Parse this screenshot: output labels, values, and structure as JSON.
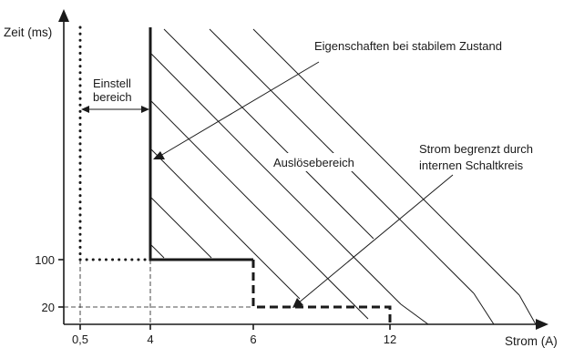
{
  "axes": {
    "y_label": "Zeit (ms)",
    "x_label": "Strom (A)",
    "x_ticks": [
      "0,5",
      "4",
      "6",
      "12"
    ],
    "y_ticks": [
      "100",
      "20"
    ]
  },
  "annotations": {
    "einstell_line1": "Einstell",
    "einstell_line2": "bereich",
    "steady_state": "Eigenschaften bei stabilem Zustand",
    "trip_region": "Auslösebereich",
    "current_limited_line1": "Strom begrenzt durch",
    "current_limited_line2": "internen Schaltkreis"
  },
  "colors": {
    "stroke": "#1a1a1a",
    "background": "#ffffff"
  }
}
